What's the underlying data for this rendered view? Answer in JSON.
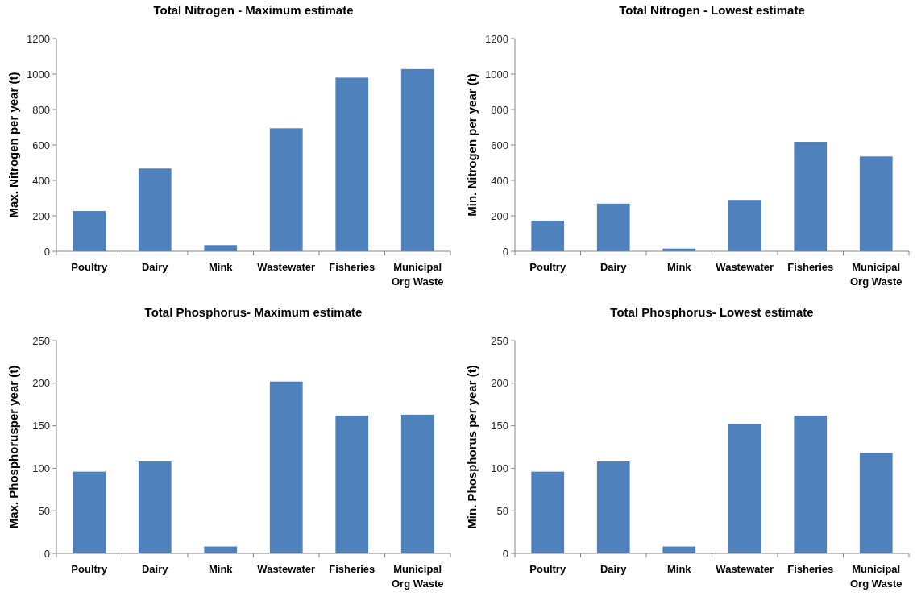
{
  "chart_data": [
    {
      "type": "bar",
      "title": "Total Nitrogen - Maximum estimate",
      "ylabel": "Max. Nitrogen per year (t)",
      "categories": [
        "Poultry",
        "Dairy",
        "Mink",
        "Wastewater",
        "Fisheries",
        "Municipal Org Waste"
      ],
      "values": [
        227,
        467,
        35,
        694,
        980,
        1028
      ],
      "color": "#4f81bd",
      "ylim": [
        0,
        1200
      ],
      "yticks": [
        0,
        200,
        400,
        600,
        800,
        1000,
        1200
      ]
    },
    {
      "type": "bar",
      "title": "Total Nitrogen - Lowest estimate",
      "ylabel": "Min. Nitrogen per year (t)",
      "categories": [
        "Poultry",
        "Dairy",
        "Mink",
        "Wastewater",
        "Fisheries",
        "Municipal Org Waste"
      ],
      "values": [
        173,
        269,
        15,
        290,
        618,
        535
      ],
      "color": "#4f81bd",
      "ylim": [
        0,
        1200
      ],
      "yticks": [
        0,
        200,
        400,
        600,
        800,
        1000,
        1200
      ]
    },
    {
      "type": "bar",
      "title": "Total Phosphorus- Maximum estimate",
      "ylabel": "Max. Phosphorusper year (t)",
      "categories": [
        "Poultry",
        "Dairy",
        "Mink",
        "Wastewater",
        "Fisheries",
        "Municipal Org Waste"
      ],
      "values": [
        96,
        108,
        8,
        202,
        162,
        163
      ],
      "color": "#4f81bd",
      "ylim": [
        0,
        250
      ],
      "yticks": [
        0,
        50,
        100,
        150,
        200,
        250
      ]
    },
    {
      "type": "bar",
      "title": "Total Phosphorus- Lowest estimate",
      "ylabel": "Min. Phosphorus per year (t)",
      "categories": [
        "Poultry",
        "Dairy",
        "Mink",
        "Wastewater",
        "Fisheries",
        "Municipal Org Waste"
      ],
      "values": [
        96,
        108,
        8,
        152,
        162,
        118
      ],
      "color": "#4f81bd",
      "ylim": [
        0,
        250
      ],
      "yticks": [
        0,
        50,
        100,
        150,
        200,
        250
      ]
    }
  ]
}
